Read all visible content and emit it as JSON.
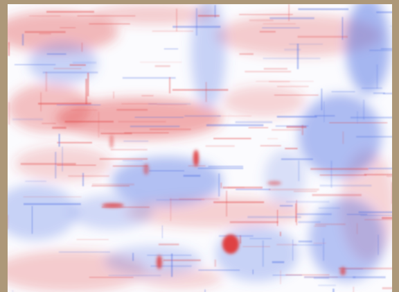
{
  "frame": {
    "border_color": "#ad9879"
  },
  "heatmap": {
    "colormap": "diverging",
    "colors": {
      "negative": "#4f6fe3",
      "neutral": "#fbfbfe",
      "positive": "#e03a3a"
    },
    "labels_visible": false,
    "axes_visible": false
  }
}
